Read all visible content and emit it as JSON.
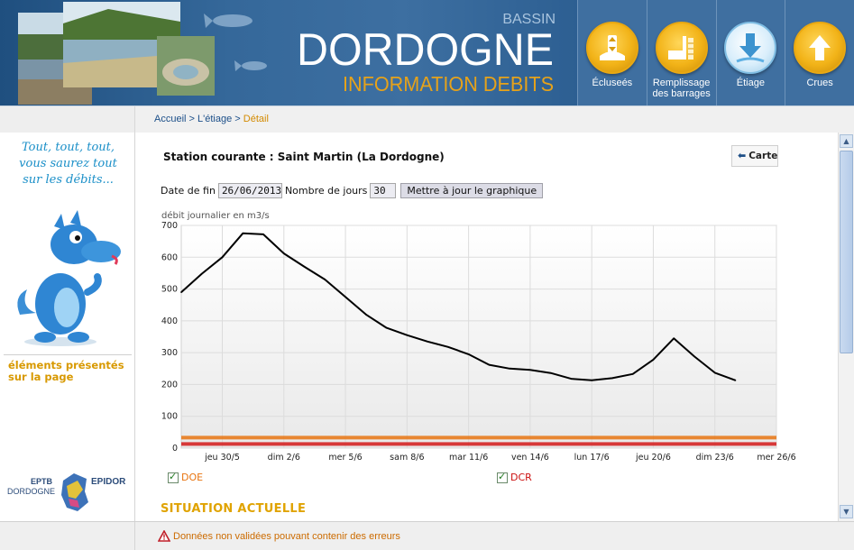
{
  "header": {
    "title_small": "BASSIN",
    "title_main": "DORDOGNE",
    "subtitle": "INFORMATION DEBITS",
    "nav": [
      {
        "label_1": "Écluseés",
        "label_2": "",
        "icon": "lock-water-icon"
      },
      {
        "label_1": "Remplissage",
        "label_2": "des barrages",
        "icon": "dam-filling-icon"
      },
      {
        "label_1": "Étiage",
        "label_2": "",
        "icon": "low-water-down-arrow-icon"
      },
      {
        "label_1": "Crues",
        "label_2": "",
        "icon": "flood-up-arrow-icon"
      }
    ]
  },
  "breadcrumb": {
    "home": "Accueil",
    "sep": ">",
    "section": "L'étiage",
    "current": "Détail"
  },
  "sidebar": {
    "slogan": [
      "Tout, tout, tout,",
      "vous saurez tout",
      "sur les débits..."
    ],
    "elements_title": "éléments présentés sur la page",
    "logo": {
      "eptb": "EPTB",
      "dordogne": "DORDOGNE",
      "epidor": "EPIDOR"
    }
  },
  "main": {
    "station_title": "Station courante : Saint Martin (La Dordogne)",
    "carte_label": "Carte",
    "date_label": "Date de fin",
    "date_value": "26/06/2013",
    "days_label": "Nombre de jours",
    "days_value": "30",
    "update_label": "Mettre à jour le graphique",
    "situation_title": "SITUATION ACTUELLE"
  },
  "legend": {
    "doe": "DOE",
    "dcr": "DCR"
  },
  "footer": {
    "note": "Données non validées pouvant contenir des erreurs"
  },
  "colors": {
    "header_blue": "#2a5b8d",
    "accent_orange": "#e0a300",
    "doe": "#e87410",
    "dcr": "#d41a1a",
    "link_blue": "#1c4f89"
  },
  "chart_data": {
    "type": "line",
    "ylabel": "débit journalier en m3/s",
    "xlabel": "",
    "ylim": [
      0,
      700
    ],
    "y_ticks": [
      0,
      100,
      200,
      300,
      400,
      500,
      600,
      700
    ],
    "x_ticks": [
      "jeu 30/5",
      "dim 2/6",
      "mer 5/6",
      "sam 8/6",
      "mar 11/6",
      "ven 14/6",
      "lun 17/6",
      "jeu 20/6",
      "dim 23/6",
      "mer 26/6"
    ],
    "series": [
      {
        "name": "",
        "color": "#000000",
        "dates": [
          "28/5",
          "29/5",
          "30/5",
          "31/5",
          "1/6",
          "2/6",
          "3/6",
          "4/6",
          "5/6",
          "6/6",
          "7/6",
          "8/6",
          "9/6",
          "10/6",
          "11/6",
          "12/6",
          "13/6",
          "14/6",
          "15/6",
          "16/6",
          "17/6",
          "18/6",
          "19/6",
          "20/6",
          "21/6",
          "22/6",
          "23/6",
          "24/6"
        ],
        "values": [
          490,
          548,
          600,
          675,
          672,
          612,
          570,
          530,
          475,
          420,
          378,
          355,
          335,
          318,
          295,
          262,
          250,
          246,
          236,
          218,
          213,
          220,
          233,
          278,
          345,
          288,
          237,
          213
        ]
      },
      {
        "name": "DOE",
        "color": "#e87410",
        "constant": 33
      },
      {
        "name": "DCR",
        "color": "#d41a1a",
        "constant": 13
      }
    ],
    "grid": true
  }
}
